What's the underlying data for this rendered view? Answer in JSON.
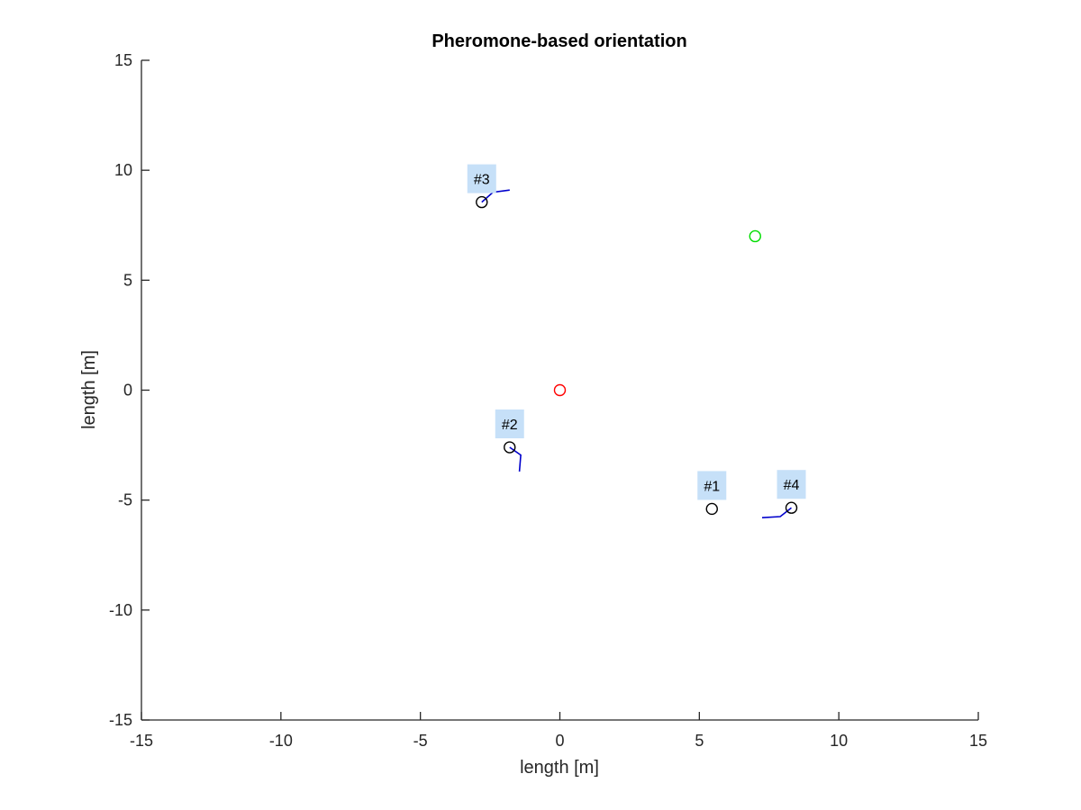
{
  "chart_data": {
    "type": "scatter",
    "title": "Pheromone-based orientation",
    "xlabel": "length [m]",
    "ylabel": "length [m]",
    "xlim": [
      -15,
      15
    ],
    "ylim": [
      -15,
      15
    ],
    "xticks": [
      -15,
      -10,
      -5,
      0,
      5,
      10,
      15
    ],
    "yticks": [
      -15,
      -10,
      -5,
      0,
      5,
      10,
      15
    ],
    "grid": false,
    "box": "left-bottom",
    "colors": {
      "axis": "#262626",
      "agent_marker": "#000000",
      "trail": "#0000cc",
      "label_bg": "#c6e0f8",
      "origin_marker": "#ff0000",
      "goal_marker": "#00dd00"
    },
    "origin": {
      "x": 0,
      "y": 0
    },
    "goal": {
      "x": 7,
      "y": 7
    },
    "agents": [
      {
        "label": "#1",
        "x": 5.45,
        "y": -5.4,
        "trail": []
      },
      {
        "label": "#2",
        "x": -1.8,
        "y": -2.6,
        "trail": [
          [
            -1.8,
            -2.6
          ],
          [
            -1.4,
            -2.95
          ],
          [
            -1.45,
            -3.7
          ]
        ]
      },
      {
        "label": "#3",
        "x": -2.8,
        "y": 8.55,
        "trail": [
          [
            -2.8,
            8.55
          ],
          [
            -2.4,
            9.0
          ],
          [
            -1.8,
            9.1
          ]
        ]
      },
      {
        "label": "#4",
        "x": 8.3,
        "y": -5.35,
        "trail": [
          [
            8.3,
            -5.35
          ],
          [
            7.9,
            -5.75
          ],
          [
            7.25,
            -5.8
          ]
        ]
      }
    ]
  }
}
